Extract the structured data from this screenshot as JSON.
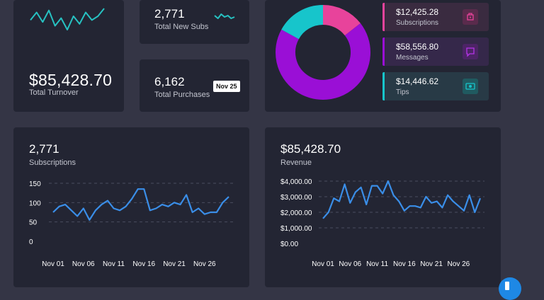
{
  "turnover": {
    "value": "$85,428.70",
    "label": "Total Turnover",
    "sparkline": [
      20,
      28,
      18,
      30,
      14,
      22,
      10,
      24,
      16,
      28,
      20,
      24,
      32
    ]
  },
  "new_subs": {
    "value": "2,771",
    "label": "Total New Subs",
    "sparkline": [
      5,
      3,
      6,
      4,
      5,
      3,
      4
    ]
  },
  "purchases": {
    "value": "6,162",
    "label": "Total Purchases",
    "badge": "Nov 25"
  },
  "donut": {
    "colors": [
      "#e8439b",
      "#9a0fd6",
      "#17c5cb"
    ],
    "values": [
      14.5,
      68.5,
      17.0
    ]
  },
  "revenue_items": [
    {
      "value": "$12,425.28",
      "label": "Subscriptions",
      "color": "#e8439b",
      "icon": "bag-icon",
      "bg": "#3a2b40",
      "icon_bg": "#5a2b4c"
    },
    {
      "value": "$58,556.80",
      "label": "Messages",
      "color": "#9a0fd6",
      "icon": "chat-icon",
      "bg": "#35284a",
      "icon_bg": "#4d2466"
    },
    {
      "value": "$14,446.62",
      "label": "Tips",
      "color": "#17c5cb",
      "icon": "money-icon",
      "bg": "#283a46",
      "icon_bg": "#205a60"
    }
  ],
  "chart_data": [
    {
      "type": "line",
      "title": "2,771",
      "subtitle": "Subscriptions",
      "y_ticks": [
        "150",
        "100",
        "50",
        "0"
      ],
      "ylim": [
        0,
        150
      ],
      "x_ticks": [
        "Nov 01",
        "Nov 06",
        "Nov 11",
        "Nov 16",
        "Nov 21",
        "Nov 26"
      ],
      "x": [
        "Nov 01",
        "Nov 02",
        "Nov 03",
        "Nov 04",
        "Nov 05",
        "Nov 06",
        "Nov 07",
        "Nov 08",
        "Nov 09",
        "Nov 10",
        "Nov 11",
        "Nov 12",
        "Nov 13",
        "Nov 14",
        "Nov 15",
        "Nov 16",
        "Nov 17",
        "Nov 18",
        "Nov 19",
        "Nov 20",
        "Nov 21",
        "Nov 22",
        "Nov 23",
        "Nov 24",
        "Nov 25",
        "Nov 26",
        "Nov 27",
        "Nov 28",
        "Nov 29",
        "Nov 30"
      ],
      "values": [
        75,
        90,
        95,
        80,
        65,
        85,
        55,
        80,
        95,
        105,
        85,
        80,
        90,
        110,
        135,
        135,
        80,
        85,
        95,
        90,
        100,
        95,
        120,
        75,
        85,
        70,
        75,
        75,
        100,
        115
      ],
      "color": "#3a8ee8"
    },
    {
      "type": "line",
      "title": "$85,428.70",
      "subtitle": "Revenue",
      "y_ticks": [
        "$4,000.00",
        "$3,000.00",
        "$2,000.00",
        "$1,000.00",
        "$0.00"
      ],
      "ylim": [
        0,
        4000
      ],
      "x_ticks": [
        "Nov 01",
        "Nov 06",
        "Nov 11",
        "Nov 16",
        "Nov 21",
        "Nov 26"
      ],
      "x": [
        "Nov 01",
        "Nov 02",
        "Nov 03",
        "Nov 04",
        "Nov 05",
        "Nov 06",
        "Nov 07",
        "Nov 08",
        "Nov 09",
        "Nov 10",
        "Nov 11",
        "Nov 12",
        "Nov 13",
        "Nov 14",
        "Nov 15",
        "Nov 16",
        "Nov 17",
        "Nov 18",
        "Nov 19",
        "Nov 20",
        "Nov 21",
        "Nov 22",
        "Nov 23",
        "Nov 24",
        "Nov 25",
        "Nov 26",
        "Nov 27",
        "Nov 28",
        "Nov 29",
        "Nov 30"
      ],
      "values": [
        1600,
        2000,
        2900,
        2700,
        3800,
        2600,
        3300,
        3600,
        2500,
        3700,
        3700,
        3200,
        4000,
        3100,
        2700,
        2100,
        2400,
        2400,
        2300,
        3000,
        2600,
        2700,
        2300,
        3100,
        2700,
        2400,
        2100,
        3100,
        2000,
        2900
      ],
      "color": "#3a8ee8"
    }
  ]
}
